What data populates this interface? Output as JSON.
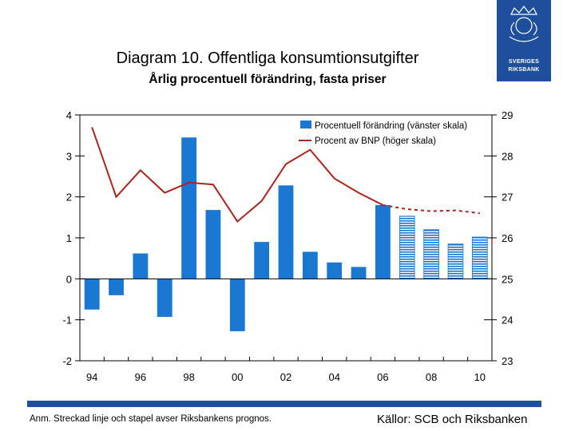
{
  "header": {
    "title": "Diagram 10. Offentliga konsumtionsutgifter",
    "subtitle": "Årlig procentuell förändring, fasta priser"
  },
  "logo": {
    "line1": "SVERIGES",
    "line2": "RIKSBANK"
  },
  "footer": {
    "note": "Anm. Streckad linje och stapel avser Riksbankens prognos.",
    "source": "Källor: SCB och Riksbanken"
  },
  "colors": {
    "bar": "#1a78d2",
    "line": "#b0221c",
    "brand": "#1f4f9c",
    "forecast_stripe": "#1a78d2"
  },
  "chart_data": {
    "type": "bar",
    "title": "Diagram 10. Offentliga konsumtionsutgifter",
    "subtitle": "Årlig procentuell förändring, fasta priser",
    "x": [
      1994,
      1995,
      1996,
      1997,
      1998,
      1999,
      2000,
      2001,
      2002,
      2003,
      2004,
      2005,
      2006,
      2007,
      2008,
      2009,
      2010
    ],
    "x_tick_labels": [
      "94",
      "96",
      "98",
      "00",
      "02",
      "04",
      "06",
      "08",
      "10"
    ],
    "x_tick_years": [
      1994,
      1996,
      1998,
      2000,
      2002,
      2004,
      2006,
      2008,
      2010
    ],
    "left_axis": {
      "ylim": [
        -2,
        4
      ],
      "ticks": [
        4,
        3,
        2,
        1,
        0,
        -1,
        -2
      ],
      "tick_labels": [
        "4",
        "3",
        "2",
        "1",
        "0",
        "-1",
        "-2"
      ]
    },
    "right_axis": {
      "ylim": [
        23,
        29
      ],
      "ticks": [
        29,
        28,
        27,
        26,
        25,
        24,
        23
      ],
      "tick_labels": [
        "29",
        "28",
        "27",
        "26",
        "25",
        "24",
        "23"
      ]
    },
    "series": [
      {
        "name": "Procentuell förändring (vänster skala)",
        "type": "bar",
        "axis": "left",
        "values": [
          -0.75,
          -0.4,
          0.62,
          -0.93,
          3.45,
          1.68,
          -1.28,
          0.9,
          2.28,
          0.66,
          0.4,
          0.29,
          1.8,
          1.53,
          1.2,
          0.85,
          1.02
        ],
        "forecast_from_index": 13
      },
      {
        "name": "Procent av BNP (höger skala)",
        "type": "line",
        "axis": "right",
        "values": [
          28.7,
          27.0,
          27.65,
          27.1,
          27.35,
          27.3,
          26.4,
          26.9,
          27.8,
          28.15,
          27.45,
          27.1,
          26.8,
          26.7,
          26.65,
          26.67,
          26.6
        ],
        "forecast_from_index": 12
      }
    ],
    "legend": {
      "position": "top-right",
      "items": [
        "Procentuell förändring (vänster skala)",
        "Procent av BNP (höger skala)"
      ]
    }
  }
}
